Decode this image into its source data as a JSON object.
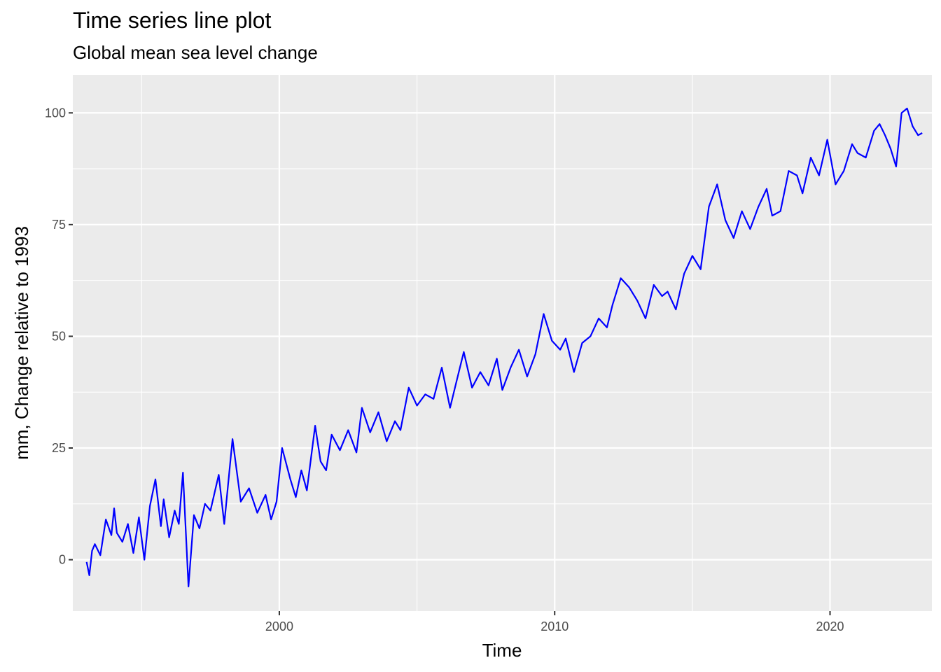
{
  "chart_data": {
    "type": "line",
    "title": "Time series line plot",
    "subtitle": "Global mean sea level change",
    "xlabel": "Time",
    "ylabel": "mm, Change relative to 1993",
    "xlim": [
      1992.5,
      2023.7
    ],
    "ylim": [
      -11.5,
      108.5
    ],
    "x_ticks": [
      2000,
      2010,
      2020
    ],
    "x_tick_labels": [
      "2000",
      "2010",
      "2020"
    ],
    "y_ticks": [
      0,
      25,
      50,
      75,
      100
    ],
    "y_tick_labels": [
      "0",
      "25",
      "50",
      "75",
      "100"
    ],
    "grid": true,
    "legend": "none",
    "colors": {
      "line": "#0000ff",
      "panel": "#ebebeb",
      "grid": "#ffffff"
    },
    "series": [
      {
        "x": [
          1993.0,
          1993.1,
          1993.2,
          1993.3,
          1993.5,
          1993.7,
          1993.9,
          1994.0,
          1994.1,
          1994.3,
          1994.5,
          1994.7,
          1994.9,
          1995.1,
          1995.3,
          1995.5,
          1995.7,
          1995.8,
          1996.0,
          1996.2,
          1996.35,
          1996.5,
          1996.7,
          1996.9,
          1997.1,
          1997.3,
          1997.5,
          1997.8,
          1998.0,
          1998.3,
          1998.6,
          1998.9,
          1999.2,
          1999.5,
          1999.7,
          1999.9,
          2000.1,
          2000.4,
          2000.6,
          2000.8,
          2001.0,
          2001.3,
          2001.5,
          2001.7,
          2001.9,
          2002.2,
          2002.5,
          2002.8,
          2003.0,
          2003.3,
          2003.6,
          2003.9,
          2004.2,
          2004.4,
          2004.7,
          2005.0,
          2005.3,
          2005.6,
          2005.9,
          2006.2,
          2006.4,
          2006.7,
          2007.0,
          2007.3,
          2007.6,
          2007.9,
          2008.1,
          2008.4,
          2008.7,
          2009.0,
          2009.3,
          2009.6,
          2009.9,
          2010.2,
          2010.4,
          2010.7,
          2011.0,
          2011.3,
          2011.6,
          2011.9,
          2012.1,
          2012.4,
          2012.7,
          2013.0,
          2013.3,
          2013.6,
          2013.9,
          2014.1,
          2014.4,
          2014.7,
          2015.0,
          2015.3,
          2015.6,
          2015.9,
          2016.2,
          2016.5,
          2016.8,
          2017.1,
          2017.4,
          2017.7,
          2017.9,
          2018.2,
          2018.5,
          2018.8,
          2019.0,
          2019.3,
          2019.6,
          2019.9,
          2020.2,
          2020.5,
          2020.8,
          2021.0,
          2021.3,
          2021.6,
          2021.8,
          2022.0,
          2022.2,
          2022.4,
          2022.6,
          2022.8,
          2023.0,
          2023.2,
          2023.35
        ],
        "values": [
          -0.5,
          -3.5,
          2.0,
          3.5,
          1.0,
          9.0,
          5.5,
          11.5,
          6.0,
          4.0,
          8.0,
          1.5,
          9.5,
          0.0,
          12.0,
          18.0,
          7.5,
          13.5,
          5.0,
          11.0,
          8.0,
          19.5,
          -6.0,
          10.0,
          7.0,
          12.5,
          11.0,
          19.0,
          8.0,
          27.0,
          13.0,
          16.0,
          10.5,
          14.5,
          9.0,
          13.0,
          25.0,
          18.0,
          14.0,
          20.0,
          15.5,
          30.0,
          22.0,
          20.0,
          28.0,
          24.5,
          29.0,
          24.0,
          34.0,
          28.5,
          33.0,
          26.5,
          31.0,
          29.0,
          38.5,
          34.5,
          37.0,
          36.0,
          43.0,
          34.0,
          39.0,
          46.5,
          38.5,
          42.0,
          39.0,
          45.0,
          38.0,
          43.0,
          47.0,
          41.0,
          46.0,
          55.0,
          49.0,
          47.0,
          49.5,
          42.0,
          48.5,
          50.0,
          54.0,
          52.0,
          57.0,
          63.0,
          61.0,
          58.0,
          54.0,
          61.5,
          59.0,
          60.0,
          56.0,
          64.0,
          68.0,
          65.0,
          79.0,
          84.0,
          76.0,
          72.0,
          78.0,
          74.0,
          79.0,
          83.0,
          77.0,
          78.0,
          87.0,
          86.0,
          82.0,
          90.0,
          86.0,
          94.0,
          84.0,
          87.0,
          93.0,
          91.0,
          90.0,
          96.0,
          97.5,
          95.0,
          92.0,
          88.0,
          100.0,
          101.0,
          97.0,
          95.0,
          95.5
        ]
      }
    ]
  }
}
